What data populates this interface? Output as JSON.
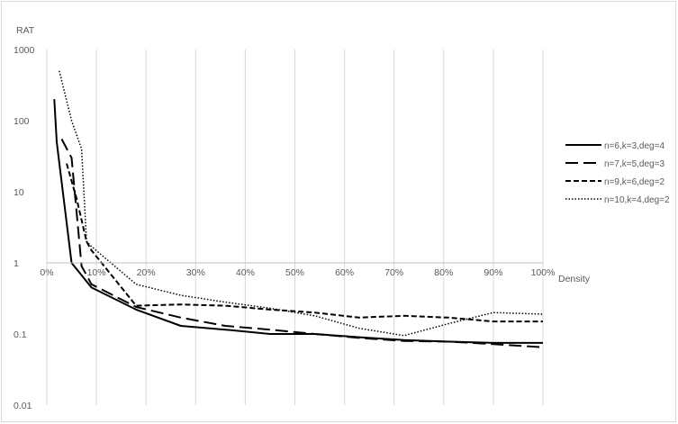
{
  "chart_data": {
    "type": "line",
    "title": "",
    "xlabel": "Density",
    "ylabel": "RAT",
    "x_scale": "linear",
    "y_scale": "log",
    "xlim": [
      0,
      100
    ],
    "ylim": [
      0.01,
      1000
    ],
    "x_ticks": [
      "0%",
      "10%",
      "20%",
      "30%",
      "40%",
      "50%",
      "60%",
      "70%",
      "80%",
      "90%",
      "100%"
    ],
    "y_ticks": [
      "0.01",
      "0.1",
      "1",
      "10",
      "100",
      "1000"
    ],
    "grid": "vertical",
    "legend_position": "right",
    "series": [
      {
        "name": "n=6,k=3,deg=4",
        "dash": "solid",
        "x": [
          1.5,
          2,
          5,
          9,
          18,
          27,
          36,
          45,
          54,
          63,
          72,
          81,
          90,
          100
        ],
        "y": [
          200,
          50,
          1.0,
          0.45,
          0.22,
          0.13,
          0.115,
          0.1,
          0.1,
          0.09,
          0.082,
          0.078,
          0.075,
          0.075
        ]
      },
      {
        "name": "n=7,k=5,deg=3",
        "dash": "long-dash",
        "x": [
          3,
          5,
          7,
          9,
          18,
          27,
          36,
          45,
          54,
          63,
          72,
          81,
          90,
          100
        ],
        "y": [
          55,
          30,
          0.9,
          0.5,
          0.24,
          0.17,
          0.13,
          0.115,
          0.1,
          0.088,
          0.08,
          0.078,
          0.072,
          0.065
        ]
      },
      {
        "name": "n=9,k=6,deg=2",
        "dash": "short-dash",
        "x": [
          4,
          6,
          8,
          9,
          18,
          27,
          36,
          45,
          54,
          63,
          72,
          81,
          90,
          100
        ],
        "y": [
          25,
          8,
          2,
          1.5,
          0.25,
          0.26,
          0.25,
          0.22,
          0.2,
          0.17,
          0.18,
          0.17,
          0.15,
          0.15
        ]
      },
      {
        "name": "n=10,k=4,deg=2",
        "dash": "dotted",
        "x": [
          2.5,
          5,
          7,
          8,
          9,
          18,
          27,
          36,
          45,
          54,
          63,
          72,
          81,
          90,
          100
        ],
        "y": [
          500,
          100,
          40,
          2,
          1.7,
          0.5,
          0.35,
          0.28,
          0.23,
          0.18,
          0.12,
          0.095,
          0.14,
          0.2,
          0.19
        ]
      }
    ]
  }
}
